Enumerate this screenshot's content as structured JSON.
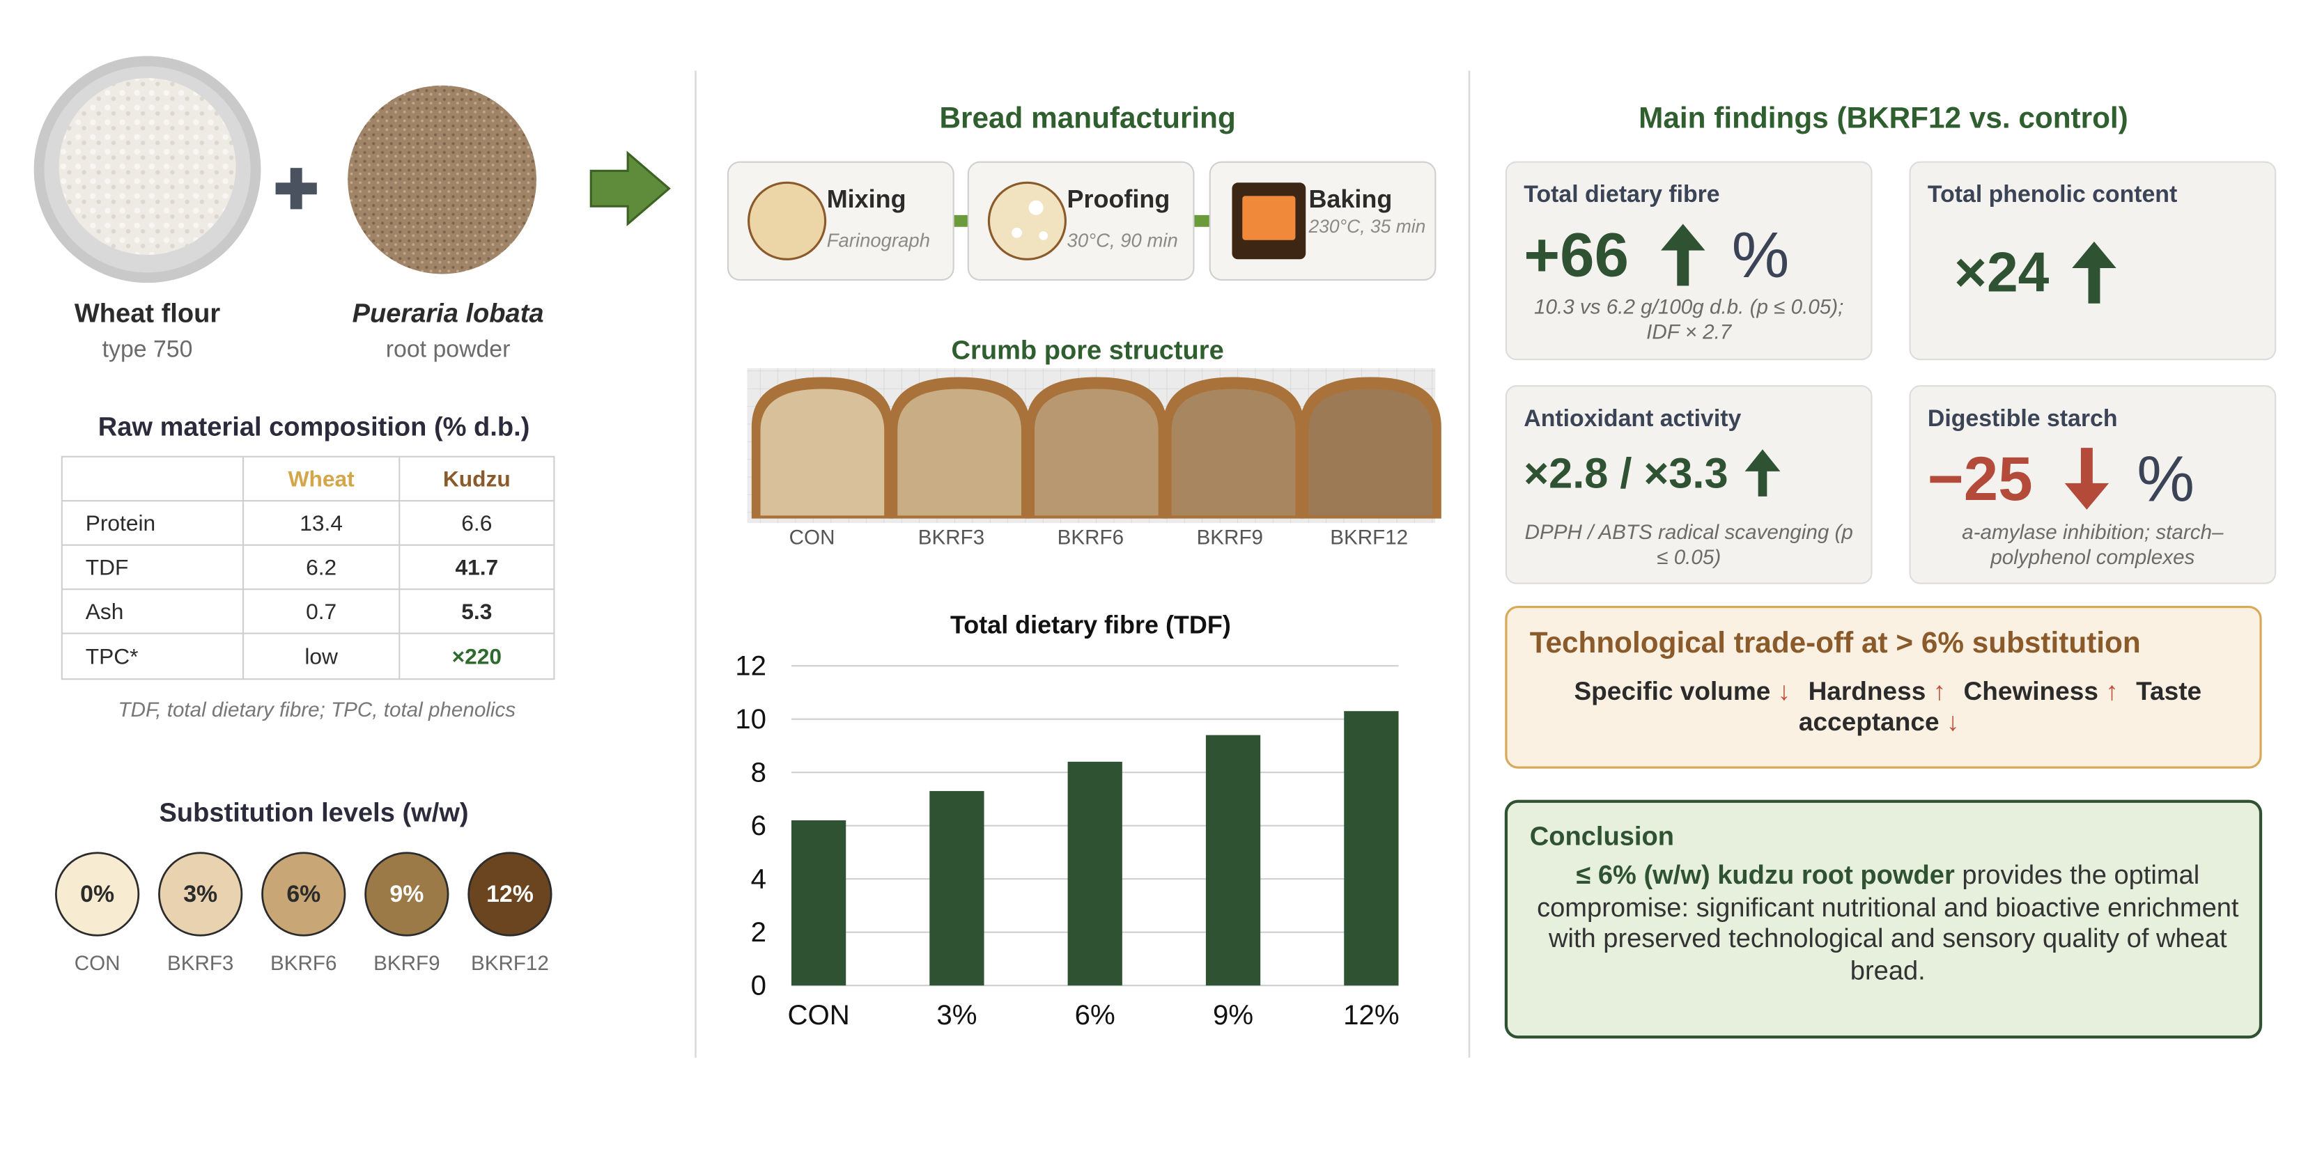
{
  "ingredients": [
    {
      "name": "Wheat flour",
      "detail": "type 750"
    },
    {
      "name": "Pueraria lobata",
      "detail": "root powder"
    }
  ],
  "composition": {
    "title": "Raw material composition (% d.b.)",
    "columns": [
      "Wheat",
      "Kudzu"
    ],
    "rows": [
      [
        "Protein",
        "13.4",
        "6.6"
      ],
      [
        "TDF",
        "6.2",
        "41.7"
      ],
      [
        "Ash",
        "0.7",
        "5.3"
      ],
      [
        "TPC*",
        "low",
        "×220"
      ]
    ],
    "footnote": "TDF, total dietary fibre; TPC, total phenolics"
  },
  "substitution": {
    "title": "Substitution levels (w/w)",
    "levels": [
      {
        "label": "0%",
        "code": "CON"
      },
      {
        "label": "3%",
        "code": "BKRF3"
      },
      {
        "label": "6%",
        "code": "BKRF6"
      },
      {
        "label": "9%",
        "code": "BKRF9"
      },
      {
        "label": "12%",
        "code": "BKRF12"
      }
    ]
  },
  "manufacturing": {
    "title": "Bread manufacturing",
    "steps": [
      {
        "name": "Mixing",
        "detail": "Farinograph"
      },
      {
        "name": "Proofing",
        "detail": "30°C, 90 min"
      },
      {
        "name": "Baking",
        "detail": "230°C, 35 min"
      }
    ]
  },
  "crumb": {
    "title": "Crumb pore structure",
    "samples": [
      "CON",
      "BKRF3",
      "BKRF6",
      "BKRF9",
      "BKRF12"
    ]
  },
  "chart_data": {
    "type": "bar",
    "title": "Total dietary fibre (TDF)",
    "categories": [
      "CON",
      "3%",
      "6%",
      "9%",
      "12%"
    ],
    "values": [
      6.2,
      7.3,
      8.4,
      9.4,
      10.3
    ],
    "color": "#2f5233",
    "ylim": [
      0,
      12
    ],
    "yticks": [
      0,
      2,
      4,
      6,
      8,
      10,
      12
    ],
    "grid": true
  },
  "findings": {
    "title": "Main findings (BKRF12 vs. control)",
    "cards": [
      {
        "title": "Total dietary fibre",
        "value": "+66",
        "unit": "%",
        "note": "10.3 vs 6.2 g/100g d.b. (p ≤ 0.05); IDF × 2.7"
      },
      {
        "title": "Total phenolic content",
        "value": "×24"
      },
      {
        "title": "Antioxidant activity",
        "value": "×2.8 / ×3.3",
        "note": "DPPH / ABTS radical scavenging (p ≤ 0.05)"
      },
      {
        "title": "Digestible starch",
        "value": "−25",
        "unit": "%",
        "note": "a-amylase inhibition; starch–polyphenol complexes"
      }
    ]
  },
  "tradeoff": {
    "title": "Technological trade-off at > 6% substitution",
    "items": [
      {
        "label": "Specific volume",
        "arrow": "↓"
      },
      {
        "label": "Hardness",
        "arrow": "↑"
      },
      {
        "label": "Chewiness",
        "arrow": "↑"
      },
      {
        "label": "Taste acceptance",
        "arrow": "↓"
      }
    ]
  },
  "conclusion": {
    "title": "Conclusion",
    "emphasis": "≤ 6% (w/w) kudzu root powder",
    "text": "provides the optimal compromise: significant nutritional and bioactive enrichment with preserved technological and sensory quality of wheat bread."
  }
}
